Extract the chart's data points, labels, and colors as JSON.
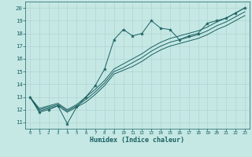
{
  "xlabel": "Humidex (Indice chaleur)",
  "xlim": [
    -0.5,
    23.5
  ],
  "ylim": [
    10.5,
    20.5
  ],
  "yticks": [
    11,
    12,
    13,
    14,
    15,
    16,
    17,
    18,
    19,
    20
  ],
  "xticks": [
    0,
    1,
    2,
    3,
    4,
    5,
    6,
    7,
    8,
    9,
    10,
    11,
    12,
    13,
    14,
    15,
    16,
    17,
    18,
    19,
    20,
    21,
    22,
    23
  ],
  "bg_color": "#c5e8e5",
  "line_color": "#1a6060",
  "grid_color": "#b0d5d0",
  "line1_x": [
    0,
    1,
    2,
    3,
    4,
    5,
    6,
    7,
    8,
    9,
    10,
    11,
    12,
    13,
    14,
    15,
    16,
    17,
    18,
    19,
    20,
    21,
    22,
    23
  ],
  "line1_y": [
    13.0,
    11.8,
    12.0,
    12.3,
    10.9,
    12.2,
    13.0,
    13.9,
    15.2,
    17.5,
    18.3,
    17.8,
    18.0,
    19.0,
    18.4,
    18.3,
    17.5,
    17.8,
    18.0,
    18.8,
    19.0,
    19.2,
    19.6,
    20.0
  ],
  "line2_x": [
    0,
    1,
    2,
    3,
    4,
    5,
    6,
    7,
    8,
    9,
    10,
    11,
    12,
    13,
    14,
    15,
    16,
    17,
    18,
    19,
    20,
    21,
    22,
    23
  ],
  "line2_y": [
    13.0,
    12.1,
    12.3,
    12.5,
    12.0,
    12.4,
    13.0,
    13.6,
    14.3,
    15.2,
    15.6,
    16.0,
    16.4,
    16.9,
    17.3,
    17.6,
    17.8,
    18.0,
    18.2,
    18.5,
    18.9,
    19.2,
    19.6,
    20.0
  ],
  "line3_x": [
    0,
    1,
    2,
    3,
    4,
    5,
    6,
    7,
    8,
    9,
    10,
    11,
    12,
    13,
    14,
    15,
    16,
    17,
    18,
    19,
    20,
    21,
    22,
    23
  ],
  "line3_y": [
    13.0,
    12.0,
    12.2,
    12.4,
    11.9,
    12.3,
    12.8,
    13.4,
    14.1,
    15.0,
    15.3,
    15.7,
    16.1,
    16.6,
    17.0,
    17.3,
    17.5,
    17.7,
    17.9,
    18.2,
    18.6,
    18.9,
    19.3,
    19.7
  ],
  "line4_x": [
    0,
    1,
    2,
    3,
    4,
    5,
    6,
    7,
    8,
    9,
    10,
    11,
    12,
    13,
    14,
    15,
    16,
    17,
    18,
    19,
    20,
    21,
    22,
    23
  ],
  "line4_y": [
    13.0,
    11.9,
    12.1,
    12.3,
    11.8,
    12.2,
    12.6,
    13.2,
    13.9,
    14.8,
    15.1,
    15.4,
    15.8,
    16.3,
    16.7,
    17.0,
    17.2,
    17.4,
    17.6,
    17.9,
    18.3,
    18.6,
    19.0,
    19.4
  ]
}
